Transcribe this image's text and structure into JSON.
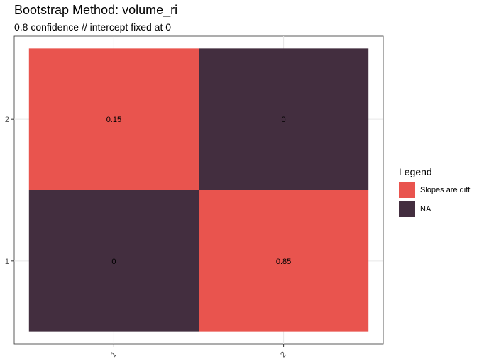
{
  "chart_data": {
    "type": "heatmap",
    "title": "Bootstrap Method: volume_ri",
    "subtitle": "0.8 confidence // intercept fixed at 0",
    "x_categories": [
      "1",
      "2"
    ],
    "y_categories": [
      "1",
      "2"
    ],
    "cells": [
      {
        "x": "1",
        "y": "2",
        "value": 0.15,
        "label": "0.15",
        "group": "Slopes are diff"
      },
      {
        "x": "2",
        "y": "2",
        "value": 0,
        "label": "0",
        "group": "NA"
      },
      {
        "x": "1",
        "y": "1",
        "value": 0,
        "label": "0",
        "group": "NA"
      },
      {
        "x": "2",
        "y": "1",
        "value": 0.85,
        "label": "0.85",
        "group": "Slopes are diff"
      }
    ],
    "legend": {
      "title": "Legend",
      "placement": "right",
      "entries": [
        {
          "label": "Slopes are diff",
          "color": "#E9544E"
        },
        {
          "label": "NA",
          "color": "#432E3F"
        }
      ]
    },
    "grid": true,
    "x_tick_rotation_deg": 45
  }
}
